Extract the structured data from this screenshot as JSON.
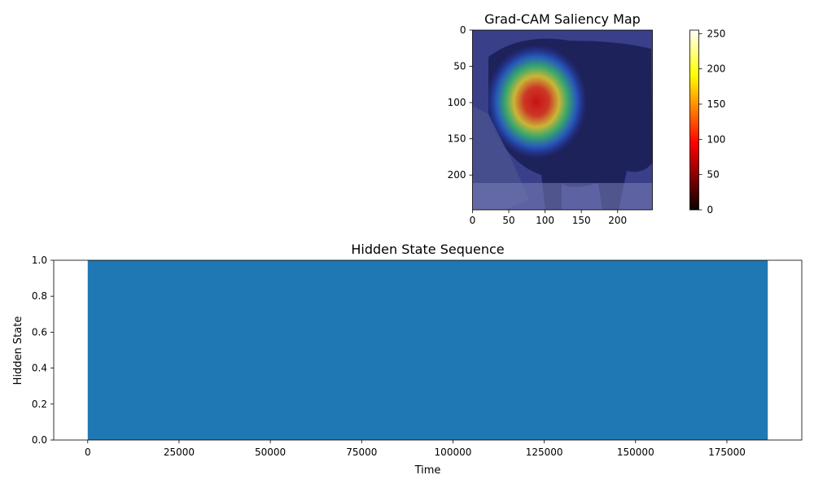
{
  "chart_data": [
    {
      "type": "heatmap",
      "title": "Grad-CAM Saliency Map",
      "xlabel": "",
      "ylabel": "",
      "image_size": [
        248,
        248
      ],
      "xlim": [
        0,
        248
      ],
      "ylim": [
        248,
        0
      ],
      "x_ticks": [
        0,
        50,
        100,
        150,
        200
      ],
      "y_ticks": [
        0,
        50,
        100,
        150,
        200
      ],
      "hotspot": {
        "x": 90,
        "y": 100,
        "peak": 150
      },
      "colormap": "jet overlay on dog photograph",
      "colorbar": {
        "colormap": "hot",
        "range": [
          0,
          255
        ],
        "ticks": [
          0,
          50,
          100,
          150,
          200,
          250
        ]
      }
    },
    {
      "type": "area",
      "title": "Hidden State Sequence",
      "xlabel": "Time",
      "ylabel": "Hidden State",
      "series_color": "#1f77b4",
      "x_range_filled": [
        0,
        186200
      ],
      "value": 1.0,
      "xlim": [
        -9310,
        195510
      ],
      "ylim": [
        0,
        1
      ],
      "x_ticks": [
        0,
        25000,
        50000,
        75000,
        100000,
        125000,
        150000,
        175000
      ],
      "y_ticks": [
        0.0,
        0.2,
        0.4,
        0.6,
        0.8,
        1.0
      ]
    }
  ]
}
